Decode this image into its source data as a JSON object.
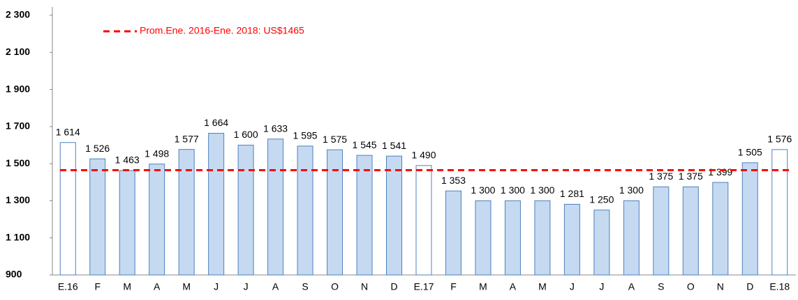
{
  "chart_data": {
    "type": "bar",
    "categories": [
      "E.16",
      "F",
      "M",
      "A",
      "M",
      "J",
      "J",
      "A",
      "S",
      "O",
      "N",
      "D",
      "E.17",
      "F",
      "M",
      "A",
      "M",
      "J",
      "J",
      "A",
      "S",
      "O",
      "N",
      "D",
      "E.18"
    ],
    "values": [
      1614,
      1526,
      1463,
      1498,
      1577,
      1664,
      1600,
      1633,
      1595,
      1575,
      1545,
      1541,
      1490,
      1353,
      1300,
      1300,
      1300,
      1281,
      1250,
      1300,
      1375,
      1375,
      1399,
      1505,
      1576
    ],
    "value_labels": [
      "1 614",
      "1 526",
      "1 463",
      "1 498",
      "1 577",
      "1 664",
      "1 600",
      "1 633",
      "1 595",
      "1 575",
      "1 545",
      "1 541",
      "1 490",
      "1 353",
      "1 300",
      "1 300",
      "1 300",
      "1 281",
      "1 250",
      "1 300",
      "1 375",
      "1 375",
      "1 399",
      "1 505",
      "1 576"
    ],
    "colors": [
      "#ffffff",
      "#c5d9f1",
      "#c5d9f1",
      "#c5d9f1",
      "#c5d9f1",
      "#c5d9f1",
      "#c5d9f1",
      "#c5d9f1",
      "#c5d9f1",
      "#c5d9f1",
      "#c5d9f1",
      "#c5d9f1",
      "#ffffff",
      "#c5d9f1",
      "#c5d9f1",
      "#c5d9f1",
      "#c5d9f1",
      "#c5d9f1",
      "#c5d9f1",
      "#c5d9f1",
      "#c5d9f1",
      "#c5d9f1",
      "#c5d9f1",
      "#c5d9f1",
      "#ffffff"
    ],
    "edge_color": "#4f81bd",
    "ylim": [
      900,
      2300
    ],
    "yticks": [
      {
        "value": 900,
        "label": "900"
      },
      {
        "value": 1100,
        "label": "1 100"
      },
      {
        "value": 1300,
        "label": "1 300"
      },
      {
        "value": 1500,
        "label": "1 500"
      },
      {
        "value": 1700,
        "label": "1 700"
      },
      {
        "value": 1900,
        "label": "1 900"
      },
      {
        "value": 2100,
        "label": "2 100"
      },
      {
        "value": 2300,
        "label": "2 300"
      }
    ],
    "grid": false,
    "reference_line": {
      "value": 1465,
      "label": "Prom.Ene. 2016-Ene. 2018: US$1465",
      "color": "#ff0000"
    }
  }
}
